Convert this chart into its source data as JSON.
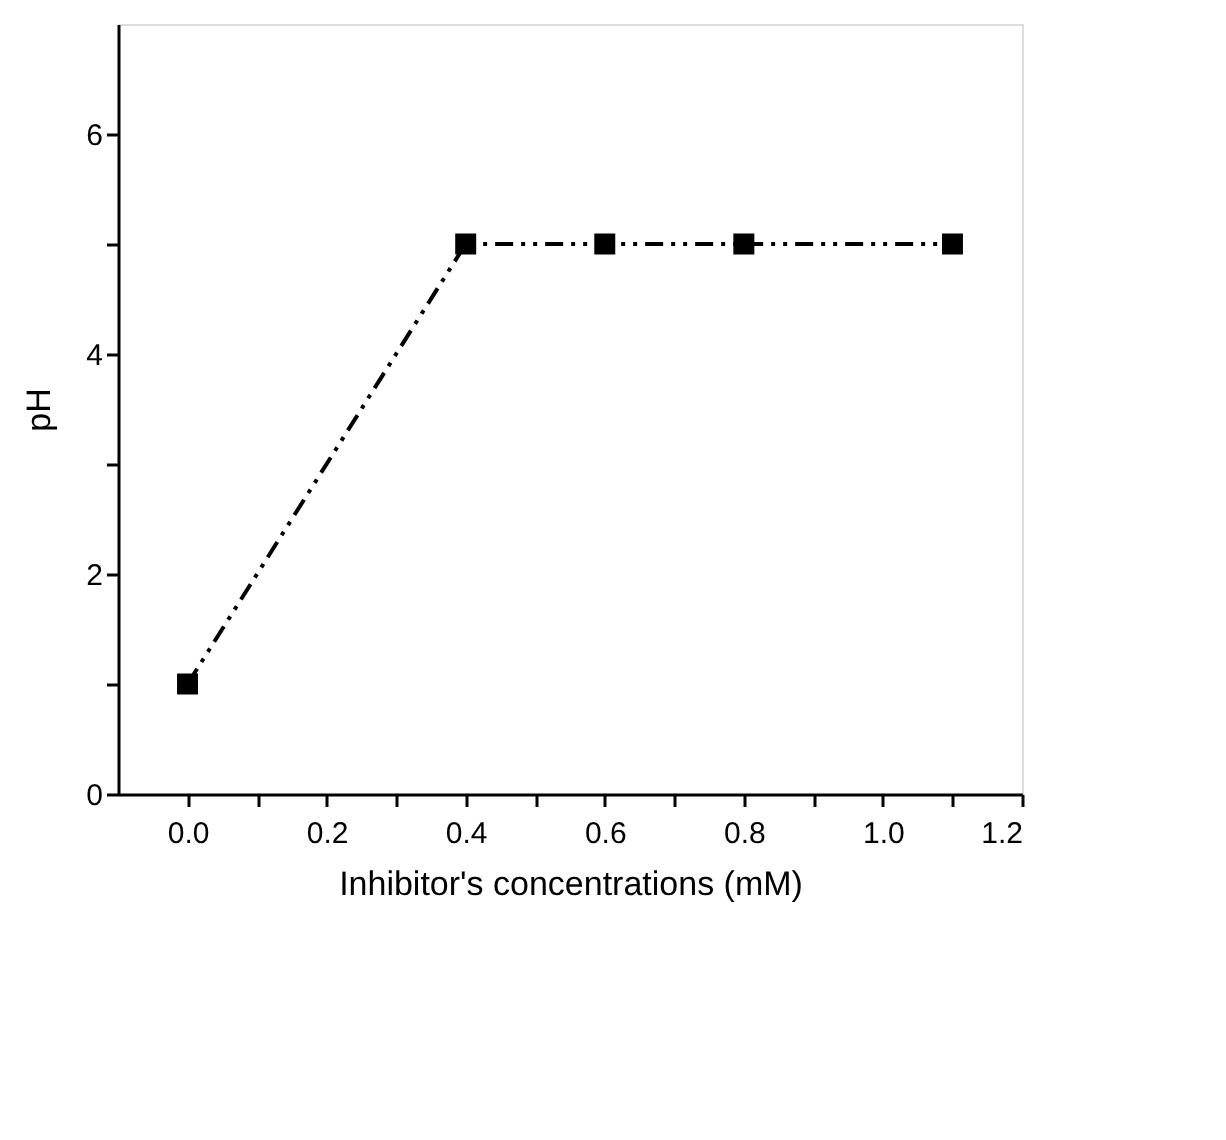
{
  "chart_data": {
    "type": "line",
    "xlabel": "Inhibitor's concentrations (mM)",
    "ylabel": "pH",
    "x": [
      0.0,
      0.4,
      0.6,
      0.8,
      1.1
    ],
    "series": [
      {
        "color": "#000000",
        "values": [
          1,
          5,
          5,
          5,
          5
        ]
      }
    ],
    "xlim": [
      -0.1,
      1.2
    ],
    "xticks": [
      {
        "value": 0,
        "label": "0.0"
      },
      {
        "value": 0.1,
        "label": null
      },
      {
        "value": 0.2,
        "label": "0.2"
      },
      {
        "value": 0.3,
        "label": null
      },
      {
        "value": 0.4,
        "label": "0.4"
      },
      {
        "value": 0.5,
        "label": null
      },
      {
        "value": 0.6,
        "label": "0.6"
      },
      {
        "value": 0.7,
        "label": null
      },
      {
        "value": 0.8,
        "label": "0.8"
      },
      {
        "value": 0.9,
        "label": null
      },
      {
        "value": 1.0,
        "label": "1.0"
      },
      {
        "value": 1.1,
        "label": null
      },
      {
        "value": 1.2,
        "label": "1.2"
      }
    ],
    "ylim": [
      0,
      7
    ],
    "yticks": [
      0,
      {
        "value": 1,
        "label": null
      },
      2,
      {
        "value": 3,
        "label": null
      },
      4,
      {
        "value": 5,
        "label": null
      },
      6
    ],
    "grid": false,
    "marker": "square",
    "line_style": "dashed"
  }
}
